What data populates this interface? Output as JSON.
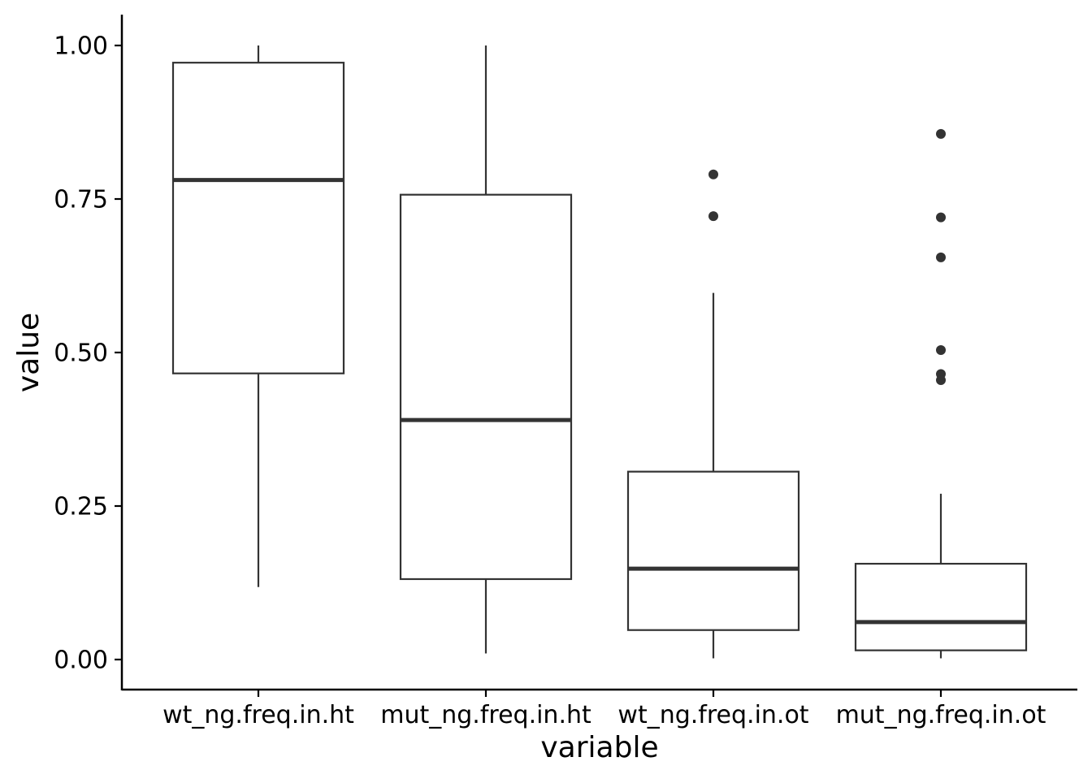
{
  "chart_data": {
    "type": "boxplot",
    "title": "",
    "xlabel": "variable",
    "ylabel": "value",
    "ylim": [
      -0.05,
      1.05
    ],
    "yticks": [
      "1.00",
      "0.75",
      "0.50",
      "0.25",
      "0.00"
    ],
    "ytick_values": [
      1.0,
      0.75,
      0.5,
      0.25,
      0.0
    ],
    "grid": false,
    "legend": "none",
    "categories": [
      "wt_ng.freq.in.ht",
      "mut_ng.freq.in.ht",
      "wt_ng.freq.in.ot",
      "mut_ng.freq.in.ot"
    ],
    "boxes": [
      {
        "category": "wt_ng.freq.in.ht",
        "whisker_low": 0.118,
        "q1": 0.466,
        "median": 0.781,
        "q3": 0.972,
        "whisker_high": 1.0,
        "outliers": []
      },
      {
        "category": "mut_ng.freq.in.ht",
        "whisker_low": 0.01,
        "q1": 0.131,
        "median": 0.39,
        "q3": 0.757,
        "whisker_high": 1.0,
        "outliers": []
      },
      {
        "category": "wt_ng.freq.in.ot",
        "whisker_low": 0.002,
        "q1": 0.048,
        "median": 0.148,
        "q3": 0.306,
        "whisker_high": 0.597,
        "outliers": [
          0.79,
          0.722
        ]
      },
      {
        "category": "mut_ng.freq.in.ot",
        "whisker_low": 0.002,
        "q1": 0.015,
        "median": 0.061,
        "q3": 0.156,
        "whisker_high": 0.27,
        "outliers": [
          0.856,
          0.72,
          0.655,
          0.504,
          0.465,
          0.455
        ]
      }
    ],
    "colors": {
      "box_stroke": "#333333",
      "box_fill": "#ffffff",
      "axis": "#000000",
      "outlier": "#333333"
    }
  }
}
